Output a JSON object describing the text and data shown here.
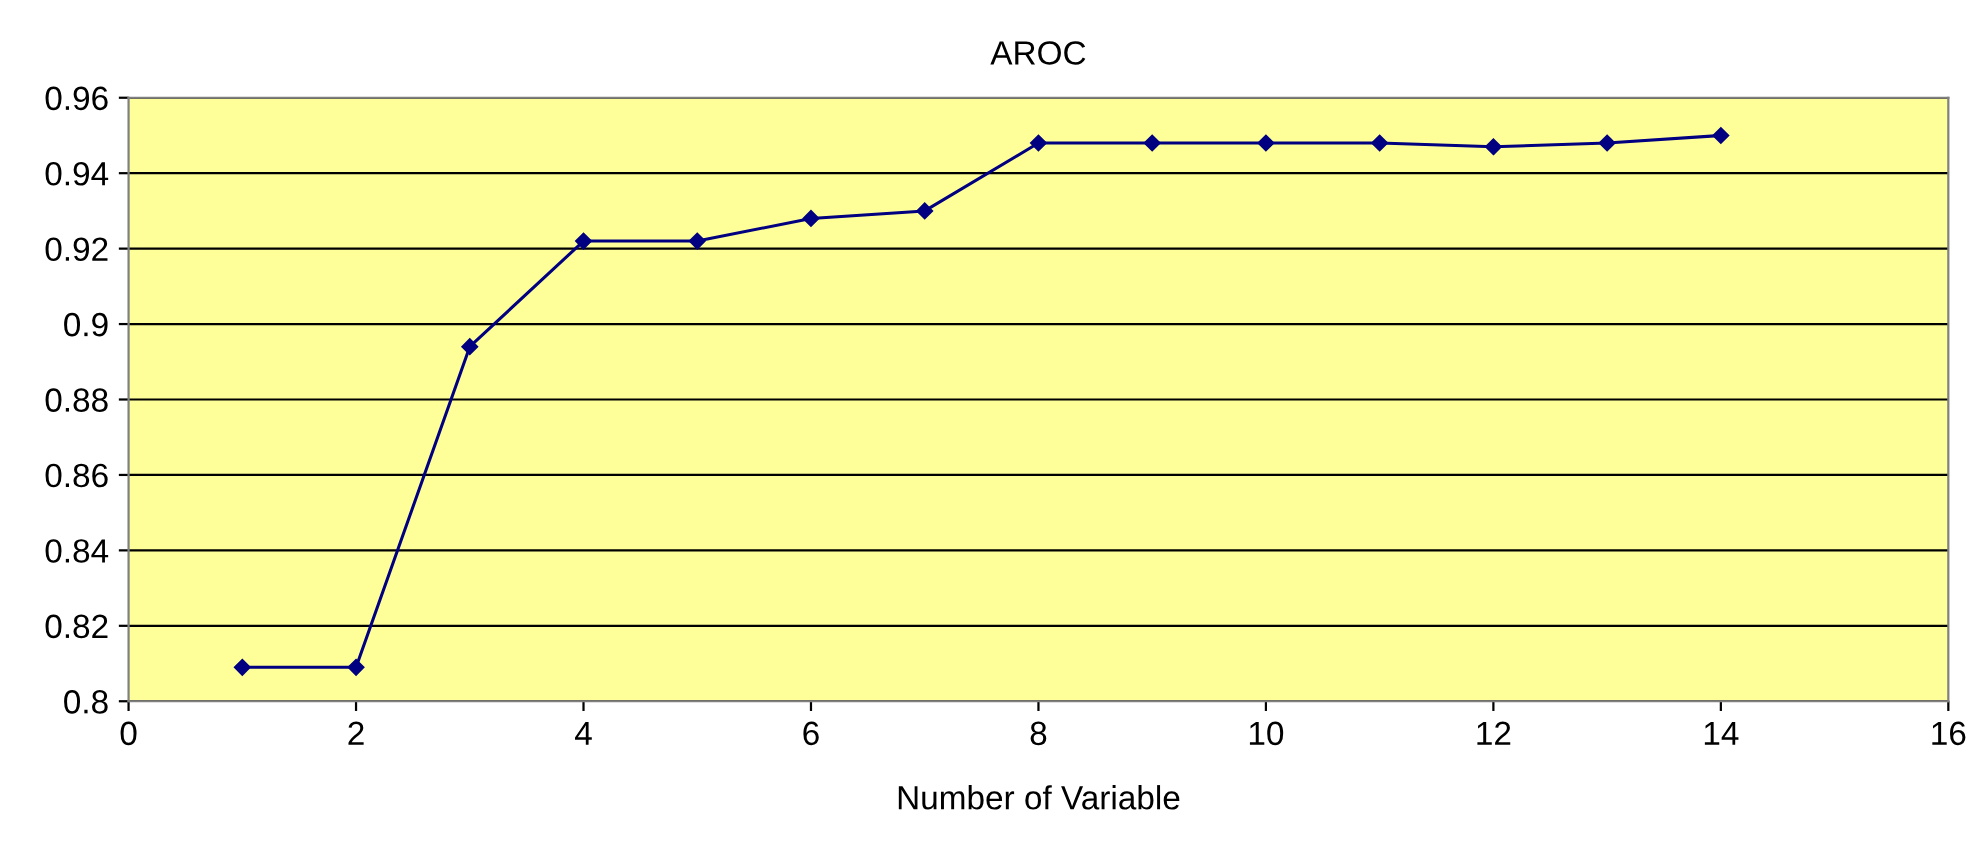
{
  "chart_data": {
    "type": "line",
    "title": "AROC",
    "xlabel": "Number of Variable",
    "x": [
      1,
      2,
      3,
      4,
      5,
      6,
      7,
      8,
      9,
      10,
      11,
      12,
      13,
      14
    ],
    "series": [
      {
        "color": "#000080",
        "values": [
          0.809,
          0.809,
          0.894,
          0.922,
          0.922,
          0.928,
          0.93,
          0.948,
          0.948,
          0.948,
          0.948,
          0.947,
          0.948,
          0.95
        ]
      }
    ],
    "xlim": [
      0,
      16
    ],
    "xticks": [
      0,
      2,
      4,
      6,
      8,
      10,
      12,
      14,
      16
    ],
    "ylim": [
      0.8,
      0.96
    ],
    "yticks": [
      {
        "value": 0.8,
        "label": "0.8"
      },
      {
        "value": 0.82,
        "label": "0.82"
      },
      {
        "value": 0.84,
        "label": "0.84"
      },
      {
        "value": 0.86,
        "label": "0.86"
      },
      {
        "value": 0.88,
        "label": "0.88"
      },
      {
        "value": 0.9,
        "label": "0.9"
      },
      {
        "value": 0.92,
        "label": "0.92"
      },
      {
        "value": 0.94,
        "label": "0.94"
      },
      {
        "value": 0.96,
        "label": "0.96"
      }
    ],
    "grid": "y",
    "marker": "diamond",
    "line_style": "solid"
  }
}
